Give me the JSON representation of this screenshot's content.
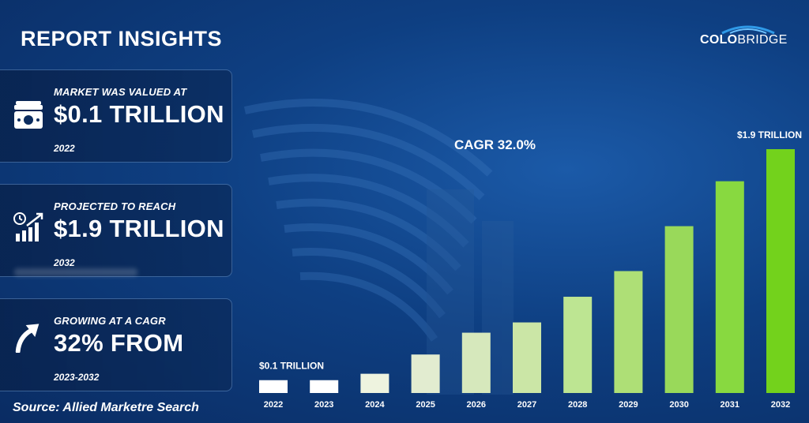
{
  "title": "REPORT INSIGHTS",
  "logo": {
    "part1": "COLO",
    "part2": "BRIDGE"
  },
  "cards": [
    {
      "label": "MARKET WAS VALUED AT",
      "value": "$0.1 TRILLION",
      "year": "2022",
      "icon": "money-stack-icon"
    },
    {
      "label": "PROJECTED TO REACH",
      "value": "$1.9 TRILLION",
      "year": "2032",
      "icon": "growth-chart-icon"
    },
    {
      "label": "GROWING AT A CAGR",
      "value": "32% FROM",
      "year": "2023-2032",
      "icon": "up-arrow-icon"
    }
  ],
  "source": "Source: Allied Marketre Search",
  "chart_data": {
    "type": "bar",
    "categories": [
      "2022",
      "2023",
      "2024",
      "2025",
      "2026",
      "2027",
      "2028",
      "2029",
      "2030",
      "2031",
      "2032"
    ],
    "values": [
      0.1,
      0.1,
      0.15,
      0.3,
      0.47,
      0.55,
      0.75,
      0.95,
      1.3,
      1.65,
      1.9
    ],
    "ylim": [
      0,
      1.9
    ],
    "annotations": [
      {
        "category": "2022",
        "text": "$0.1 TRILLION"
      },
      {
        "category": "2032",
        "text": "$1.9 TRILLION"
      }
    ],
    "cagr_label": "CAGR 32.0%",
    "colors": [
      "#ffffff",
      "#ffffff",
      "#eef3df",
      "#e2ecd0",
      "#d6e8bc",
      "#cbe6a6",
      "#bde592",
      "#aedf76",
      "#99d95a",
      "#88d940",
      "#73d21c"
    ]
  }
}
